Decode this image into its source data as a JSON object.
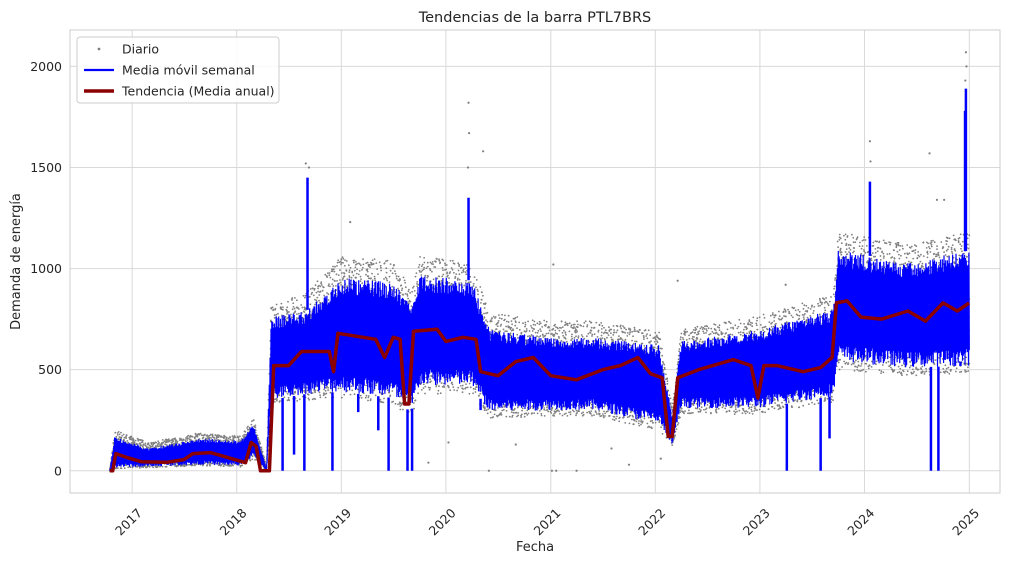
{
  "chart_data": {
    "type": "line",
    "title": "Tendencias de la barra PTL7BRS",
    "xlabel": "Fecha",
    "ylabel": "Demanda de energía",
    "xlim": [
      "2016-05-29",
      "2025-04-18"
    ],
    "ylim": [
      -110,
      2180
    ],
    "x_ticks": [
      "2017-01-01",
      "2018-01-01",
      "2019-01-01",
      "2020-01-01",
      "2021-01-01",
      "2022-01-01",
      "2023-01-01",
      "2024-01-01",
      "2025-01-01"
    ],
    "x_tick_labels": [
      "2017",
      "2018",
      "2019",
      "2020",
      "2021",
      "2022",
      "2023",
      "2024",
      "2025"
    ],
    "y_ticks": [
      0,
      500,
      1000,
      1500,
      2000
    ],
    "y_tick_labels": [
      "0",
      "500",
      "1000",
      "1500",
      "2000"
    ],
    "grid": true,
    "legend_position": "top-left",
    "series": [
      {
        "name": "Diario",
        "style": "points",
        "color": "#808080",
        "envelope": [
          {
            "x": "2016-10-15",
            "lo": 0,
            "hi": 0
          },
          {
            "x": "2016-11-01",
            "lo": 10,
            "hi": 200
          },
          {
            "x": "2017-03-01",
            "lo": 15,
            "hi": 140
          },
          {
            "x": "2017-09-01",
            "lo": 25,
            "hi": 190
          },
          {
            "x": "2018-01-15",
            "lo": 20,
            "hi": 170
          },
          {
            "x": "2018-03-01",
            "lo": 60,
            "hi": 260
          },
          {
            "x": "2018-04-15",
            "lo": 0,
            "hi": 20
          },
          {
            "x": "2018-05-01",
            "lo": 330,
            "hi": 820
          },
          {
            "x": "2018-09-01",
            "lo": 350,
            "hi": 880
          },
          {
            "x": "2019-01-01",
            "lo": 360,
            "hi": 1060
          },
          {
            "x": "2019-07-01",
            "lo": 330,
            "hi": 1040
          },
          {
            "x": "2019-09-01",
            "lo": 260,
            "hi": 900
          },
          {
            "x": "2019-10-01",
            "lo": 380,
            "hi": 1060
          },
          {
            "x": "2020-04-01",
            "lo": 380,
            "hi": 1030
          },
          {
            "x": "2020-06-01",
            "lo": 260,
            "hi": 780
          },
          {
            "x": "2021-01-01",
            "lo": 270,
            "hi": 740
          },
          {
            "x": "2021-06-01",
            "lo": 270,
            "hi": 740
          },
          {
            "x": "2022-01-15",
            "lo": 200,
            "hi": 690
          },
          {
            "x": "2022-03-01",
            "lo": 120,
            "hi": 310
          },
          {
            "x": "2022-04-01",
            "lo": 280,
            "hi": 700
          },
          {
            "x": "2023-01-01",
            "lo": 280,
            "hi": 770
          },
          {
            "x": "2023-09-15",
            "lo": 340,
            "hi": 870
          },
          {
            "x": "2023-10-01",
            "lo": 500,
            "hi": 1180
          },
          {
            "x": "2024-06-01",
            "lo": 470,
            "hi": 1120
          },
          {
            "x": "2025-01-01",
            "lo": 480,
            "hi": 1180
          }
        ],
        "outliers": [
          {
            "x": "2018-08-30",
            "y": 1520
          },
          {
            "x": "2018-09-10",
            "y": 1500
          },
          {
            "x": "2019-02-01",
            "y": 1230
          },
          {
            "x": "2020-03-20",
            "y": 1820
          },
          {
            "x": "2020-03-22",
            "y": 1670
          },
          {
            "x": "2020-03-18",
            "y": 1500
          },
          {
            "x": "2020-05-10",
            "y": 1580
          },
          {
            "x": "2021-01-10",
            "y": 1020
          },
          {
            "x": "2022-03-20",
            "y": 940
          },
          {
            "x": "2023-04-01",
            "y": 920
          },
          {
            "x": "2024-01-20",
            "y": 1630
          },
          {
            "x": "2024-01-22",
            "y": 1530
          },
          {
            "x": "2024-08-15",
            "y": 1570
          },
          {
            "x": "2024-09-10",
            "y": 1340
          },
          {
            "x": "2024-10-05",
            "y": 1340
          },
          {
            "x": "2024-12-20",
            "y": 2070
          },
          {
            "x": "2024-12-22",
            "y": 2000
          },
          {
            "x": "2024-12-18",
            "y": 1930
          },
          {
            "x": "2020-01-10",
            "y": 140
          },
          {
            "x": "2020-05-30",
            "y": 0
          },
          {
            "x": "2020-09-01",
            "y": 130
          },
          {
            "x": "2021-01-05",
            "y": 0
          },
          {
            "x": "2021-01-20",
            "y": 0
          },
          {
            "x": "2021-04-01",
            "y": 0
          },
          {
            "x": "2021-10-01",
            "y": 30
          },
          {
            "x": "2022-01-20",
            "y": 60
          },
          {
            "x": "2021-08-01",
            "y": 110
          },
          {
            "x": "2019-11-01",
            "y": 40
          }
        ]
      },
      {
        "name": "Media móvil semanal",
        "style": "band",
        "color": "#0000ff",
        "envelope": [
          {
            "x": "2016-10-15",
            "lo": 0,
            "hi": 0
          },
          {
            "x": "2016-11-01",
            "lo": 15,
            "hi": 170
          },
          {
            "x": "2017-03-01",
            "lo": 20,
            "hi": 110
          },
          {
            "x": "2017-09-01",
            "lo": 30,
            "hi": 160
          },
          {
            "x": "2018-01-15",
            "lo": 25,
            "hi": 150
          },
          {
            "x": "2018-03-01",
            "lo": 70,
            "hi": 230
          },
          {
            "x": "2018-04-15",
            "lo": 0,
            "hi": 10
          },
          {
            "x": "2018-05-01",
            "lo": 350,
            "hi": 760
          },
          {
            "x": "2018-09-01",
            "lo": 380,
            "hi": 790
          },
          {
            "x": "2019-01-01",
            "lo": 390,
            "hi": 960
          },
          {
            "x": "2019-07-01",
            "lo": 360,
            "hi": 930
          },
          {
            "x": "2019-09-01",
            "lo": 290,
            "hi": 820
          },
          {
            "x": "2019-10-01",
            "lo": 420,
            "hi": 970
          },
          {
            "x": "2020-04-01",
            "lo": 420,
            "hi": 940
          },
          {
            "x": "2020-06-01",
            "lo": 290,
            "hi": 700
          },
          {
            "x": "2021-01-01",
            "lo": 300,
            "hi": 660
          },
          {
            "x": "2021-06-01",
            "lo": 300,
            "hi": 660
          },
          {
            "x": "2022-01-15",
            "lo": 230,
            "hi": 620
          },
          {
            "x": "2022-03-01",
            "lo": 130,
            "hi": 270
          },
          {
            "x": "2022-04-01",
            "lo": 310,
            "hi": 640
          },
          {
            "x": "2023-01-01",
            "lo": 310,
            "hi": 700
          },
          {
            "x": "2023-09-15",
            "lo": 370,
            "hi": 800
          },
          {
            "x": "2023-10-01",
            "lo": 540,
            "hi": 1090
          },
          {
            "x": "2024-06-01",
            "lo": 510,
            "hi": 1030
          },
          {
            "x": "2025-01-01",
            "lo": 520,
            "hi": 1090
          }
        ],
        "spikes": [
          {
            "x": "2018-09-05",
            "y": 1450
          },
          {
            "x": "2020-03-20",
            "y": 1350
          },
          {
            "x": "2024-01-20",
            "y": 1430
          },
          {
            "x": "2024-12-20",
            "y": 1890
          },
          {
            "x": "2024-12-17",
            "y": 1780
          }
        ],
        "dips": [
          {
            "x": "2018-06-10",
            "y": 0
          },
          {
            "x": "2018-07-20",
            "y": 80
          },
          {
            "x": "2018-08-25",
            "y": 0
          },
          {
            "x": "2018-12-01",
            "y": 0
          },
          {
            "x": "2019-03-01",
            "y": 290
          },
          {
            "x": "2019-05-10",
            "y": 200
          },
          {
            "x": "2019-06-15",
            "y": 0
          },
          {
            "x": "2019-08-20",
            "y": 0
          },
          {
            "x": "2019-09-05",
            "y": 0
          },
          {
            "x": "2020-05-01",
            "y": 300
          },
          {
            "x": "2023-04-05",
            "y": 0
          },
          {
            "x": "2023-08-01",
            "y": 0
          },
          {
            "x": "2023-09-01",
            "y": 160
          },
          {
            "x": "2024-08-20",
            "y": 0
          },
          {
            "x": "2024-09-15",
            "y": 0
          },
          {
            "x": "2024-12-01",
            "y": 540
          }
        ]
      },
      {
        "name": "Tendencia (Media anual)",
        "style": "line",
        "color": "#8b0000",
        "points": [
          {
            "x": "2016-10-15",
            "y": 0
          },
          {
            "x": "2016-10-25",
            "y": 0
          },
          {
            "x": "2016-11-05",
            "y": 85
          },
          {
            "x": "2016-12-15",
            "y": 65
          },
          {
            "x": "2017-02-01",
            "y": 45
          },
          {
            "x": "2017-05-01",
            "y": 42
          },
          {
            "x": "2017-07-01",
            "y": 55
          },
          {
            "x": "2017-08-01",
            "y": 85
          },
          {
            "x": "2017-10-01",
            "y": 90
          },
          {
            "x": "2017-12-01",
            "y": 65
          },
          {
            "x": "2018-02-01",
            "y": 40
          },
          {
            "x": "2018-02-20",
            "y": 140
          },
          {
            "x": "2018-03-10",
            "y": 120
          },
          {
            "x": "2018-03-25",
            "y": 0
          },
          {
            "x": "2018-04-25",
            "y": 0
          },
          {
            "x": "2018-05-10",
            "y": 520
          },
          {
            "x": "2018-07-01",
            "y": 520
          },
          {
            "x": "2018-08-15",
            "y": 590
          },
          {
            "x": "2018-11-20",
            "y": 590
          },
          {
            "x": "2018-12-05",
            "y": 490
          },
          {
            "x": "2018-12-20",
            "y": 680
          },
          {
            "x": "2019-05-01",
            "y": 650
          },
          {
            "x": "2019-06-01",
            "y": 560
          },
          {
            "x": "2019-07-01",
            "y": 660
          },
          {
            "x": "2019-07-25",
            "y": 650
          },
          {
            "x": "2019-08-10",
            "y": 330
          },
          {
            "x": "2019-08-25",
            "y": 330
          },
          {
            "x": "2019-09-10",
            "y": 690
          },
          {
            "x": "2019-12-01",
            "y": 700
          },
          {
            "x": "2020-01-01",
            "y": 640
          },
          {
            "x": "2020-03-01",
            "y": 660
          },
          {
            "x": "2020-04-15",
            "y": 650
          },
          {
            "x": "2020-05-01",
            "y": 490
          },
          {
            "x": "2020-07-01",
            "y": 470
          },
          {
            "x": "2020-09-01",
            "y": 540
          },
          {
            "x": "2020-11-01",
            "y": 560
          },
          {
            "x": "2021-01-01",
            "y": 470
          },
          {
            "x": "2021-04-01",
            "y": 450
          },
          {
            "x": "2021-07-01",
            "y": 500
          },
          {
            "x": "2021-09-01",
            "y": 520
          },
          {
            "x": "2021-11-01",
            "y": 560
          },
          {
            "x": "2021-12-15",
            "y": 480
          },
          {
            "x": "2022-01-25",
            "y": 460
          },
          {
            "x": "2022-02-15",
            "y": 170
          },
          {
            "x": "2022-03-01",
            "y": 170
          },
          {
            "x": "2022-03-20",
            "y": 460
          },
          {
            "x": "2022-06-01",
            "y": 500
          },
          {
            "x": "2022-10-01",
            "y": 550
          },
          {
            "x": "2022-12-01",
            "y": 520
          },
          {
            "x": "2022-12-25",
            "y": 360
          },
          {
            "x": "2023-01-15",
            "y": 520
          },
          {
            "x": "2023-03-01",
            "y": 520
          },
          {
            "x": "2023-06-01",
            "y": 490
          },
          {
            "x": "2023-08-01",
            "y": 510
          },
          {
            "x": "2023-09-10",
            "y": 560
          },
          {
            "x": "2023-09-25",
            "y": 830
          },
          {
            "x": "2023-11-01",
            "y": 840
          },
          {
            "x": "2023-12-20",
            "y": 760
          },
          {
            "x": "2024-03-01",
            "y": 750
          },
          {
            "x": "2024-06-01",
            "y": 790
          },
          {
            "x": "2024-08-01",
            "y": 740
          },
          {
            "x": "2024-10-01",
            "y": 830
          },
          {
            "x": "2024-11-20",
            "y": 790
          },
          {
            "x": "2024-12-31",
            "y": 830
          }
        ]
      }
    ]
  }
}
